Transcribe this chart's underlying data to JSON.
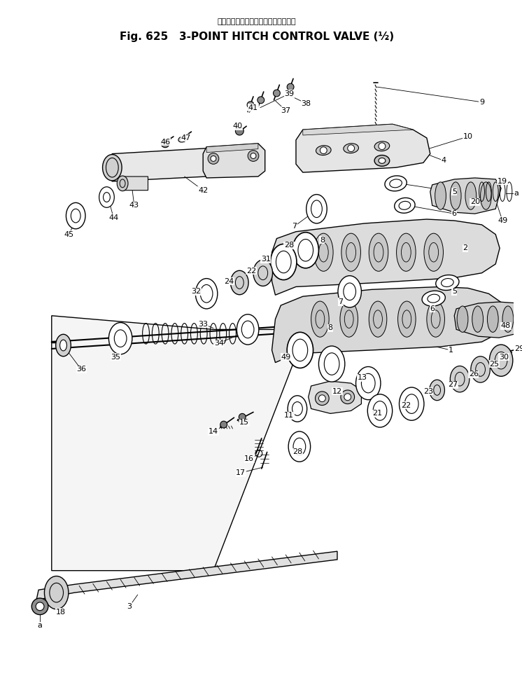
{
  "title_japanese": "3点　ヒッチ　コントロール　バルブ",
  "title_english": "Fig. 625   3-POINT HITCH CONTROL VALVE (½)",
  "bg_color": "#ffffff",
  "line_color": "#000000",
  "fig_width": 7.46,
  "fig_height": 9.88,
  "dpi": 100
}
